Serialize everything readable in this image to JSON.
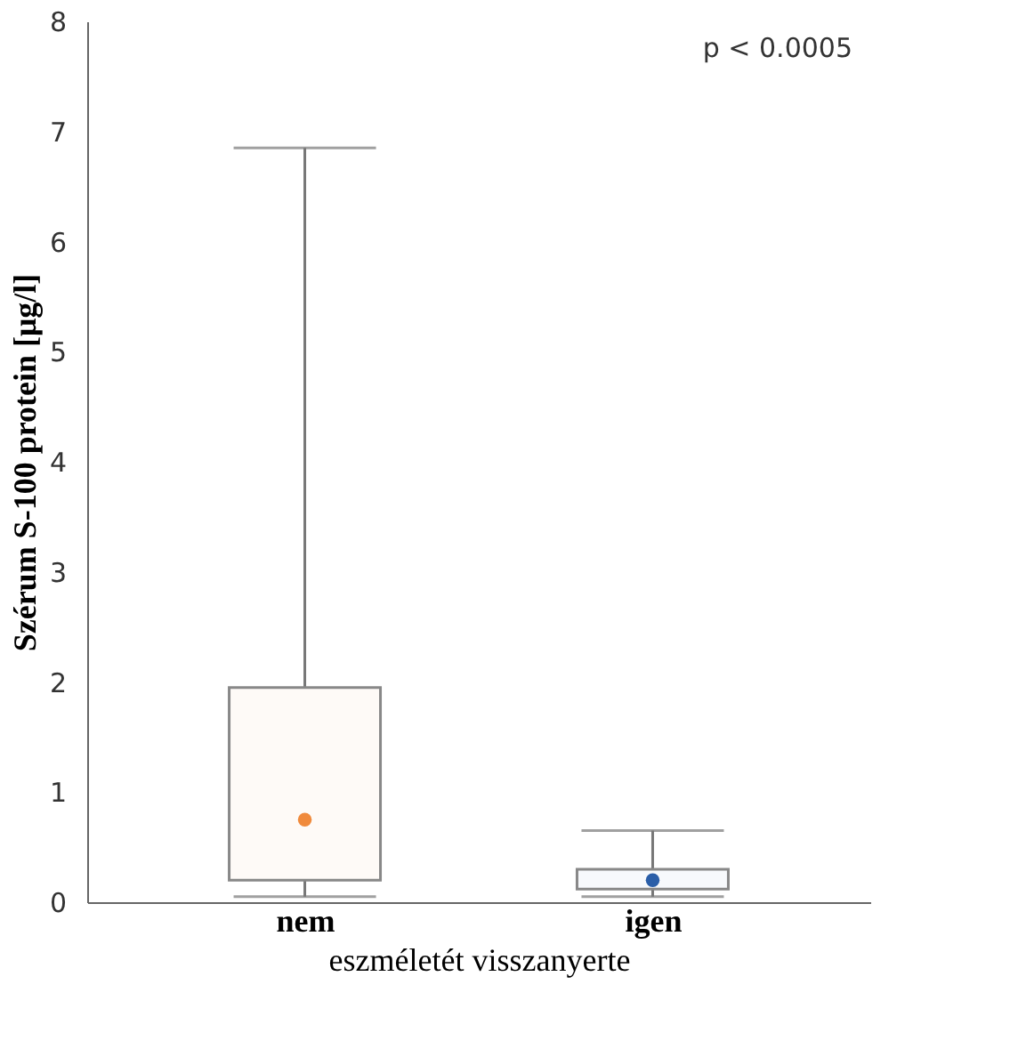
{
  "chart_data": {
    "type": "box",
    "xlabel": "eszméletét visszanyerte",
    "ylabel": "Szérum S-100 protein [μg/l]",
    "categories": [
      "nem",
      "igen"
    ],
    "series": [
      {
        "colors": [
          "#f08a3c",
          "#2a5ea8"
        ],
        "boxes": [
          {
            "low": 0.05,
            "q1": 0.2,
            "median": 0.75,
            "q3": 1.95,
            "high": 6.85
          },
          {
            "low": 0.05,
            "q1": 0.12,
            "median": 0.2,
            "q3": 0.3,
            "high": 0.65
          }
        ]
      }
    ],
    "ylim": [
      0,
      8
    ],
    "yticks": [
      0,
      1,
      2,
      3,
      4,
      5,
      6,
      7,
      8
    ],
    "grid": false,
    "annotations": [
      "p < 0.0005"
    ]
  }
}
